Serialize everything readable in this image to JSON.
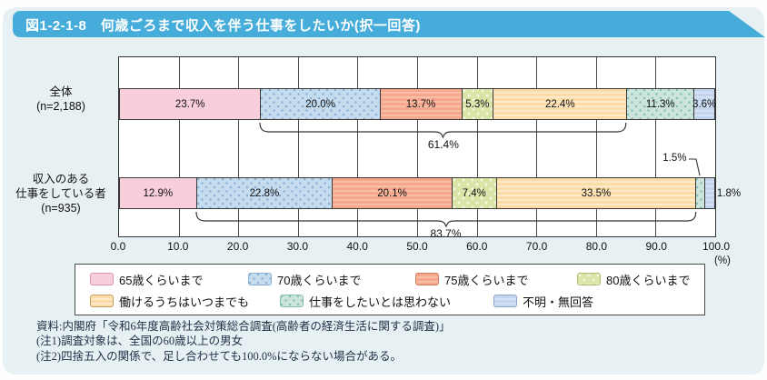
{
  "header": {
    "title": "図1-2-1-8　何歳ごろまで収入を伴う仕事をしたいか(択一回答)"
  },
  "chart_data": {
    "type": "bar",
    "subtype": "horizontal-stacked",
    "unit": "(%)",
    "xlim": [
      0,
      100
    ],
    "x_ticks": [
      "0.0",
      "10.0",
      "20.0",
      "30.0",
      "40.0",
      "50.0",
      "60.0",
      "70.0",
      "80.0",
      "90.0",
      "100.0"
    ],
    "grid": "vertical",
    "categories": [
      {
        "lines": [
          "全体",
          "(n=2,188)"
        ]
      },
      {
        "lines": [
          "収入のある",
          "仕事をしている者",
          "(n=935)"
        ]
      }
    ],
    "series": [
      {
        "name": "65歳くらいまで",
        "pattern": "pat-pink",
        "fill": "#F8CEDA",
        "accent": "#D994AB",
        "values": [
          23.7,
          12.9
        ]
      },
      {
        "name": "70歳くらいまで",
        "pattern": "pat-dots-blue",
        "fill": "#C5DBEE",
        "accent": "#86AED4",
        "values": [
          20.0,
          22.8
        ]
      },
      {
        "name": "75歳くらいまで",
        "pattern": "pat-stripes-salmon",
        "fill": "#F5A88D",
        "accent": "#CF7E5F",
        "values": [
          13.7,
          20.1
        ]
      },
      {
        "name": "80歳くらいまで",
        "pattern": "pat-dots-green",
        "fill": "#D9E4A6",
        "accent": "#ADBA6F",
        "values": [
          5.3,
          7.4
        ]
      },
      {
        "name": "働けるうちはいつまでも",
        "pattern": "pat-stripes-cream",
        "fill": "#FBDCA6",
        "accent": "#C49E60",
        "values": [
          22.4,
          33.5
        ]
      },
      {
        "name": "仕事をしたいとは思わない",
        "pattern": "pat-dots-teal",
        "fill": "#CBE5DC",
        "accent": "#84BCAD",
        "values": [
          11.3,
          1.5
        ]
      },
      {
        "name": "不明・無回答",
        "pattern": "pat-stripes-peri",
        "fill": "#C2D5EC",
        "accent": "#8BA7CC",
        "values": [
          3.6,
          1.8
        ]
      }
    ],
    "segment_labels": [
      [
        "23.7%",
        "20.0%",
        "13.7%",
        "5.3%",
        "22.4%",
        "11.3%",
        "3.6%"
      ],
      [
        "12.9%",
        "22.8%",
        "20.1%",
        "7.4%",
        "33.5%",
        "1.5%",
        "1.8%"
      ]
    ],
    "label_placement": [
      [
        "inside",
        "inside",
        "inside",
        "inside",
        "inside",
        "inside",
        "inside"
      ],
      [
        "inside",
        "inside",
        "inside",
        "inside",
        "inside",
        "callout",
        "outside"
      ]
    ],
    "braces": [
      {
        "bar": 0,
        "from_pct": 23.7,
        "to_pct": 85.1,
        "label": "61.4%"
      },
      {
        "bar": 1,
        "from_pct": 12.9,
        "to_pct": 96.7,
        "label": "83.7%"
      }
    ],
    "callout": {
      "bar": 1,
      "series_index": 5,
      "label": "1.5%"
    },
    "legend_rows": [
      [
        0,
        1,
        2,
        3
      ],
      [
        4,
        5,
        6
      ]
    ]
  },
  "footer": {
    "source": "資料:内閣府「令和6年度高齢社会対策総合調査(高齢者の経済生活に関する調査)」",
    "note1": "(注1)調査対象は、全国の60歳以上の男女",
    "note2": "(注2)四捨五入の関係で、足し合わせても100.0%にならない場合がある。"
  }
}
